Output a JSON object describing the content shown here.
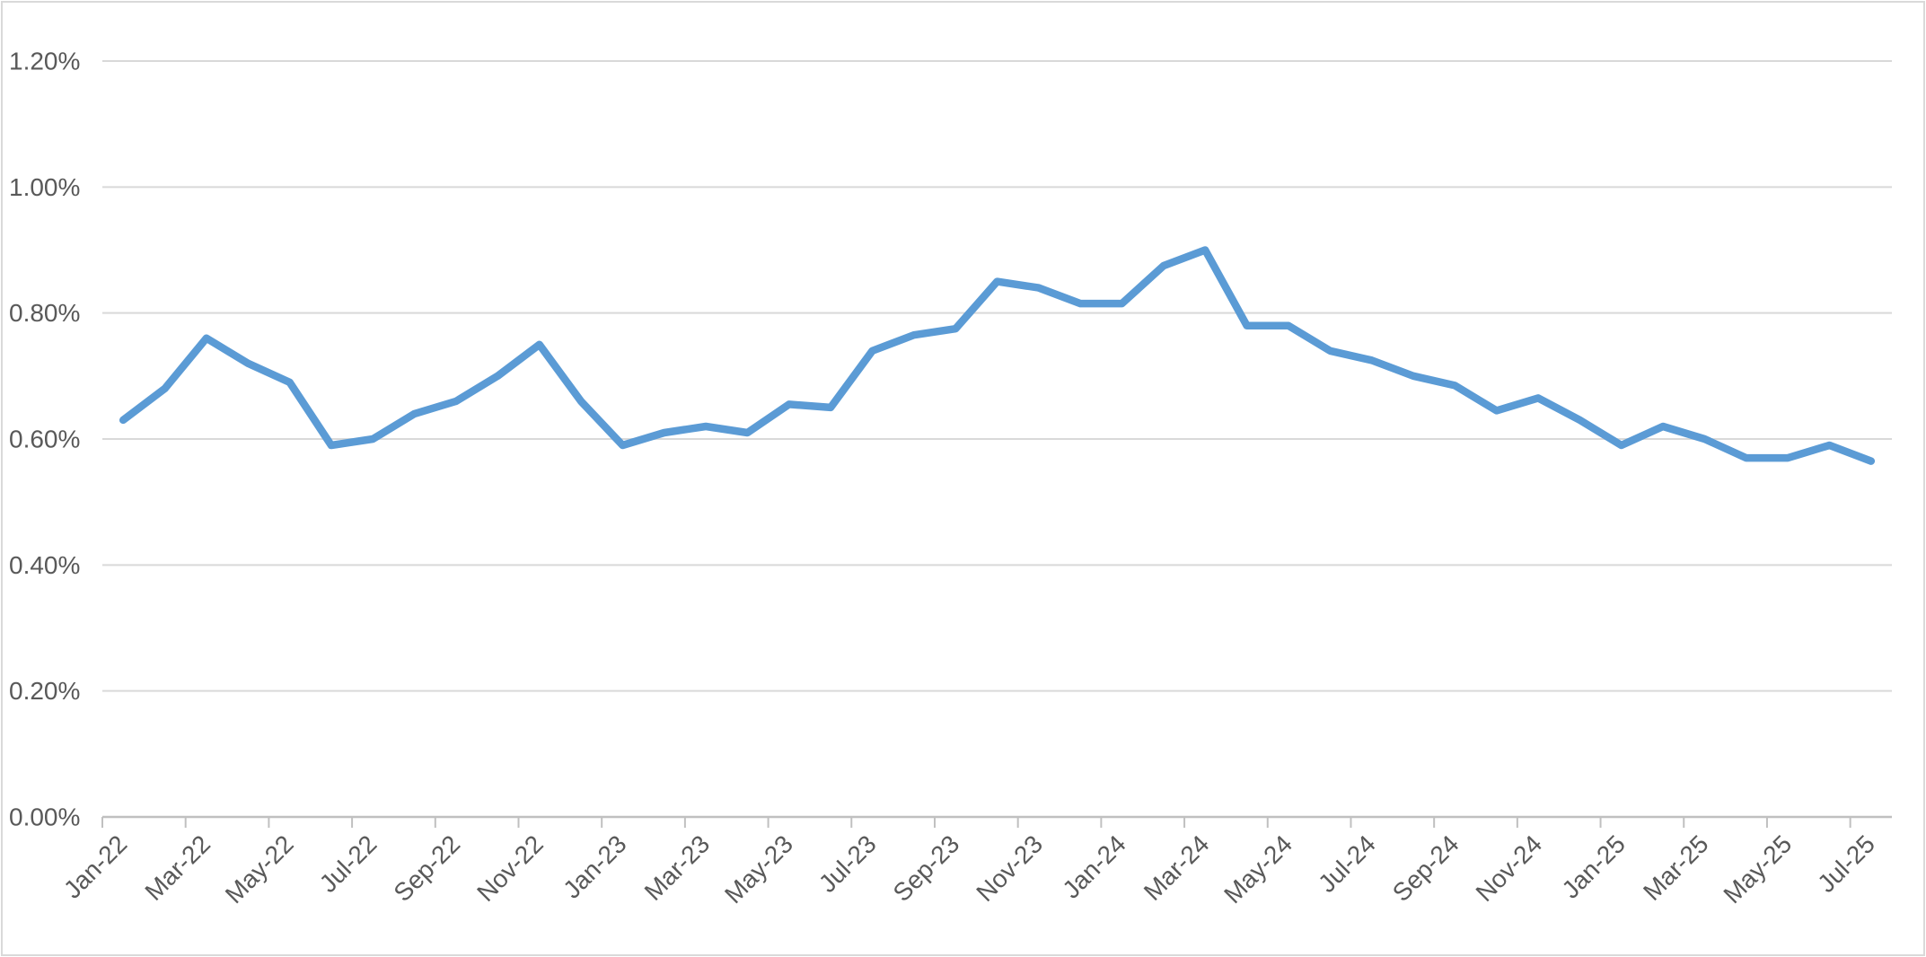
{
  "chart": {
    "title": "",
    "background_color": "#FFFFFF",
    "border_color": "#D9D9D9",
    "colors": {
      "series_line": "#5B9BD5",
      "gridline": "#D9D9D9",
      "axis_line": "#C0C0C0",
      "tick_label": "#595959"
    },
    "y_axis_tick_labels": [
      "0.00%",
      "0.20%",
      "0.40%",
      "0.60%",
      "0.80%",
      "1.00%",
      "1.20%"
    ],
    "x_axis_tick_labels": [
      "Jan-22",
      "Mar-22",
      "May-22",
      "Jul-22",
      "Sep-22",
      "Nov-22",
      "Jan-23",
      "Mar-23",
      "May-23",
      "Jul-23",
      "Sep-23",
      "Nov-23",
      "Jan-24",
      "Mar-24",
      "May-24",
      "Jul-24",
      "Sep-24",
      "Nov-24",
      "Jan-25",
      "Mar-25",
      "May-25",
      "Jul-25"
    ]
  },
  "chart_data": {
    "type": "line",
    "title": "",
    "xlabel": "",
    "ylabel": "",
    "legend": "none",
    "grid": "horizontal",
    "y_unit": "percent",
    "ylim": [
      0,
      1.2
    ],
    "y_tick_step": 0.2,
    "y_tick_format": "0.00%",
    "x_label_rotation_deg": 45,
    "x_labels_shown_every": 2,
    "categories": [
      "Jan-22",
      "Feb-22",
      "Mar-22",
      "Apr-22",
      "May-22",
      "Jun-22",
      "Jul-22",
      "Aug-22",
      "Sep-22",
      "Oct-22",
      "Nov-22",
      "Dec-22",
      "Jan-23",
      "Feb-23",
      "Mar-23",
      "Apr-23",
      "May-23",
      "Jun-23",
      "Jul-23",
      "Aug-23",
      "Sep-23",
      "Oct-23",
      "Nov-23",
      "Dec-23",
      "Jan-24",
      "Feb-24",
      "Mar-24",
      "Apr-24",
      "May-24",
      "Jun-24",
      "Jul-24",
      "Aug-24",
      "Sep-24",
      "Oct-24",
      "Nov-24",
      "Dec-24",
      "Jan-25",
      "Feb-25",
      "Mar-25",
      "Apr-25",
      "May-25",
      "Jun-25",
      "Jul-25"
    ],
    "values": [
      0.63,
      0.68,
      0.76,
      0.72,
      0.69,
      0.59,
      0.6,
      0.64,
      0.66,
      0.7,
      0.75,
      0.66,
      0.59,
      0.61,
      0.62,
      0.61,
      0.655,
      0.65,
      0.74,
      0.765,
      0.775,
      0.85,
      0.84,
      0.815,
      0.815,
      0.875,
      0.9,
      0.78,
      0.78,
      0.74,
      0.725,
      0.7,
      0.685,
      0.645,
      0.665,
      0.63,
      0.59,
      0.62,
      0.6,
      0.57,
      0.57,
      0.59,
      0.565
    ]
  }
}
